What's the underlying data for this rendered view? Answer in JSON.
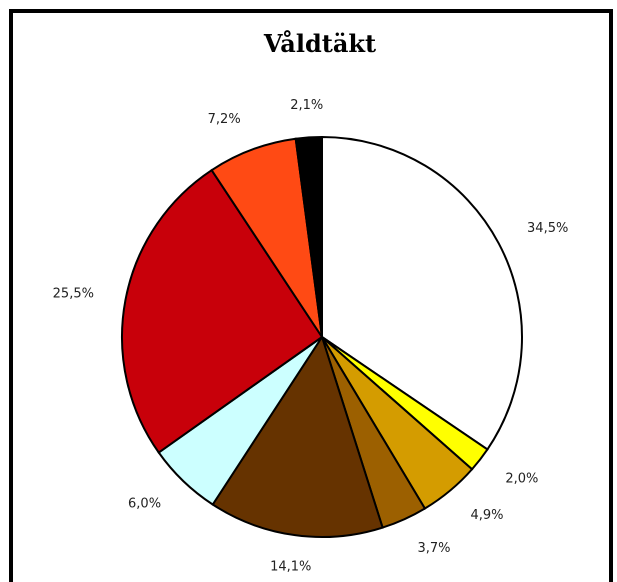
{
  "chart_data": {
    "type": "pie",
    "title": "Våldtäkt",
    "values": [
      34.5,
      2.0,
      4.9,
      3.7,
      14.1,
      6.0,
      25.5,
      7.2,
      2.1
    ],
    "value_labels": [
      "34,5%",
      "2,0%",
      "4,9%",
      "3,7%",
      "14,1%",
      "6,0%",
      "25,5%",
      "7,2%",
      "2,1%"
    ],
    "colors": [
      "#ffffff",
      "#ffff00",
      "#d49c00",
      "#9c6000",
      "#663300",
      "#ccffff",
      "#c8000a",
      "#ff4a14",
      "#000000"
    ]
  }
}
